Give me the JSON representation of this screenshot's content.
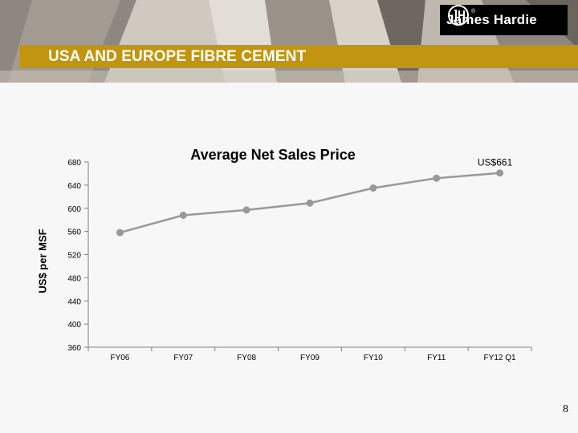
{
  "brand": {
    "name": "James Hardie",
    "registered": "®"
  },
  "slide": {
    "title": "USA AND EUROPE FIBRE CEMENT",
    "page_number": "8"
  },
  "colors": {
    "banner": "#c1950f",
    "series": "#999999",
    "axis": "#808080"
  },
  "chart_data": {
    "type": "line",
    "title": "Average Net Sales Price",
    "ylabel": "US$ per MSF",
    "xlabel": "",
    "categories": [
      "FY06",
      "FY07",
      "FY08",
      "FY09",
      "FY10",
      "FY11",
      "FY12 Q1"
    ],
    "values": [
      558,
      588,
      597,
      609,
      635,
      652,
      661
    ],
    "ylim": [
      360,
      680
    ],
    "yticks": [
      360,
      400,
      440,
      480,
      520,
      560,
      600,
      640,
      680
    ],
    "annotations": [
      {
        "text": "US$661",
        "category": "FY12 Q1"
      }
    ],
    "grid": false,
    "legend": "none"
  }
}
